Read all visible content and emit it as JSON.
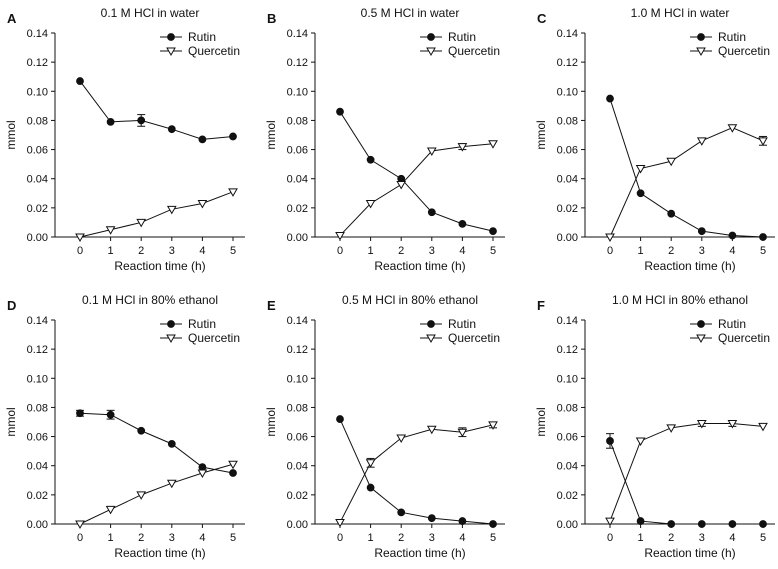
{
  "figure": {
    "shared": {
      "xlabel": "Reaction time (h)",
      "ylabel": "mmol",
      "x_ticks": [
        "0",
        "1",
        "2",
        "3",
        "4",
        "5"
      ],
      "y_ticks": [
        "0.00",
        "0.02",
        "0.04",
        "0.06",
        "0.08",
        "0.10",
        "0.12",
        "0.14"
      ],
      "legend": [
        "Rutin",
        "Quercetin"
      ],
      "color": "#111111"
    }
  },
  "chart_data": [
    {
      "type": "line",
      "panel": "A",
      "title": "0.1 M HCl in water",
      "xlabel": "Reaction time (h)",
      "ylabel": "mmol",
      "x": [
        0,
        1,
        2,
        3,
        4,
        5
      ],
      "xlim": [
        0,
        5
      ],
      "ylim": [
        0,
        0.14
      ],
      "series": [
        {
          "name": "Rutin",
          "marker": "filled-circle",
          "values": [
            0.107,
            0.079,
            0.08,
            0.074,
            0.067,
            0.069
          ],
          "errors": [
            0,
            0,
            0.004,
            0,
            0,
            0
          ]
        },
        {
          "name": "Quercetin",
          "marker": "open-triangle-down",
          "values": [
            0.0,
            0.005,
            0.01,
            0.019,
            0.023,
            0.031
          ],
          "errors": [
            0,
            0,
            0,
            0,
            0,
            0
          ]
        }
      ]
    },
    {
      "type": "line",
      "panel": "B",
      "title": "0.5 M HCl in water",
      "xlabel": "Reaction time (h)",
      "ylabel": "mmol",
      "x": [
        0,
        1,
        2,
        3,
        4,
        5
      ],
      "xlim": [
        0,
        5
      ],
      "ylim": [
        0,
        0.14
      ],
      "series": [
        {
          "name": "Rutin",
          "marker": "filled-circle",
          "values": [
            0.086,
            0.053,
            0.04,
            0.017,
            0.009,
            0.004
          ],
          "errors": [
            0,
            0,
            0,
            0,
            0,
            0
          ]
        },
        {
          "name": "Quercetin",
          "marker": "open-triangle-down",
          "values": [
            0.001,
            0.023,
            0.036,
            0.059,
            0.062,
            0.064
          ],
          "errors": [
            0,
            0,
            0,
            0,
            0.002,
            0
          ]
        }
      ]
    },
    {
      "type": "line",
      "panel": "C",
      "title": "1.0 M HCl in water",
      "xlabel": "Reaction time (h)",
      "ylabel": "mmol",
      "x": [
        0,
        1,
        2,
        3,
        4,
        5
      ],
      "xlim": [
        0,
        5
      ],
      "ylim": [
        0,
        0.14
      ],
      "series": [
        {
          "name": "Rutin",
          "marker": "filled-circle",
          "values": [
            0.095,
            0.03,
            0.016,
            0.004,
            0.001,
            0.0
          ],
          "errors": [
            0,
            0,
            0,
            0,
            0,
            0
          ]
        },
        {
          "name": "Quercetin",
          "marker": "open-triangle-down",
          "values": [
            0.0,
            0.047,
            0.052,
            0.066,
            0.075,
            0.066
          ],
          "errors": [
            0,
            0,
            0,
            0,
            0,
            0.003
          ]
        }
      ]
    },
    {
      "type": "line",
      "panel": "D",
      "title": "0.1 M HCl in 80% ethanol",
      "xlabel": "Reaction time (h)",
      "ylabel": "mmol",
      "x": [
        0,
        1,
        2,
        3,
        4,
        5
      ],
      "xlim": [
        0,
        5
      ],
      "ylim": [
        0,
        0.14
      ],
      "series": [
        {
          "name": "Rutin",
          "marker": "filled-circle",
          "values": [
            0.076,
            0.075,
            0.064,
            0.055,
            0.039,
            0.035
          ],
          "errors": [
            0.002,
            0.003,
            0,
            0,
            0,
            0
          ]
        },
        {
          "name": "Quercetin",
          "marker": "open-triangle-down",
          "values": [
            0.0,
            0.01,
            0.02,
            0.028,
            0.035,
            0.041
          ],
          "errors": [
            0,
            0,
            0,
            0,
            0,
            0
          ]
        }
      ]
    },
    {
      "type": "line",
      "panel": "E",
      "title": "0.5 M HCl in 80% ethanol",
      "xlabel": "Reaction time (h)",
      "ylabel": "mmol",
      "x": [
        0,
        1,
        2,
        3,
        4,
        5
      ],
      "xlim": [
        0,
        5
      ],
      "ylim": [
        0,
        0.14
      ],
      "series": [
        {
          "name": "Rutin",
          "marker": "filled-circle",
          "values": [
            0.072,
            0.025,
            0.008,
            0.004,
            0.002,
            0.0
          ],
          "errors": [
            0,
            0,
            0,
            0,
            0,
            0
          ]
        },
        {
          "name": "Quercetin",
          "marker": "open-triangle-down",
          "values": [
            0.001,
            0.042,
            0.059,
            0.065,
            0.063,
            0.068
          ],
          "errors": [
            0,
            0.003,
            0,
            0,
            0.003,
            0.002
          ]
        }
      ]
    },
    {
      "type": "line",
      "panel": "F",
      "title": "1.0 M HCl in 80% ethanol",
      "xlabel": "Reaction time (h)",
      "ylabel": "mmol",
      "x": [
        0,
        1,
        2,
        3,
        4,
        5
      ],
      "xlim": [
        0,
        5
      ],
      "ylim": [
        0,
        0.14
      ],
      "series": [
        {
          "name": "Rutin",
          "marker": "filled-circle",
          "values": [
            0.057,
            0.002,
            0.0,
            0.0,
            0.0,
            0.0
          ],
          "errors": [
            0.005,
            0,
            0,
            0,
            0,
            0
          ]
        },
        {
          "name": "Quercetin",
          "marker": "open-triangle-down",
          "values": [
            0.002,
            0.057,
            0.066,
            0.069,
            0.069,
            0.067
          ],
          "errors": [
            0,
            0,
            0,
            0.002,
            0.002,
            0
          ]
        }
      ]
    }
  ]
}
